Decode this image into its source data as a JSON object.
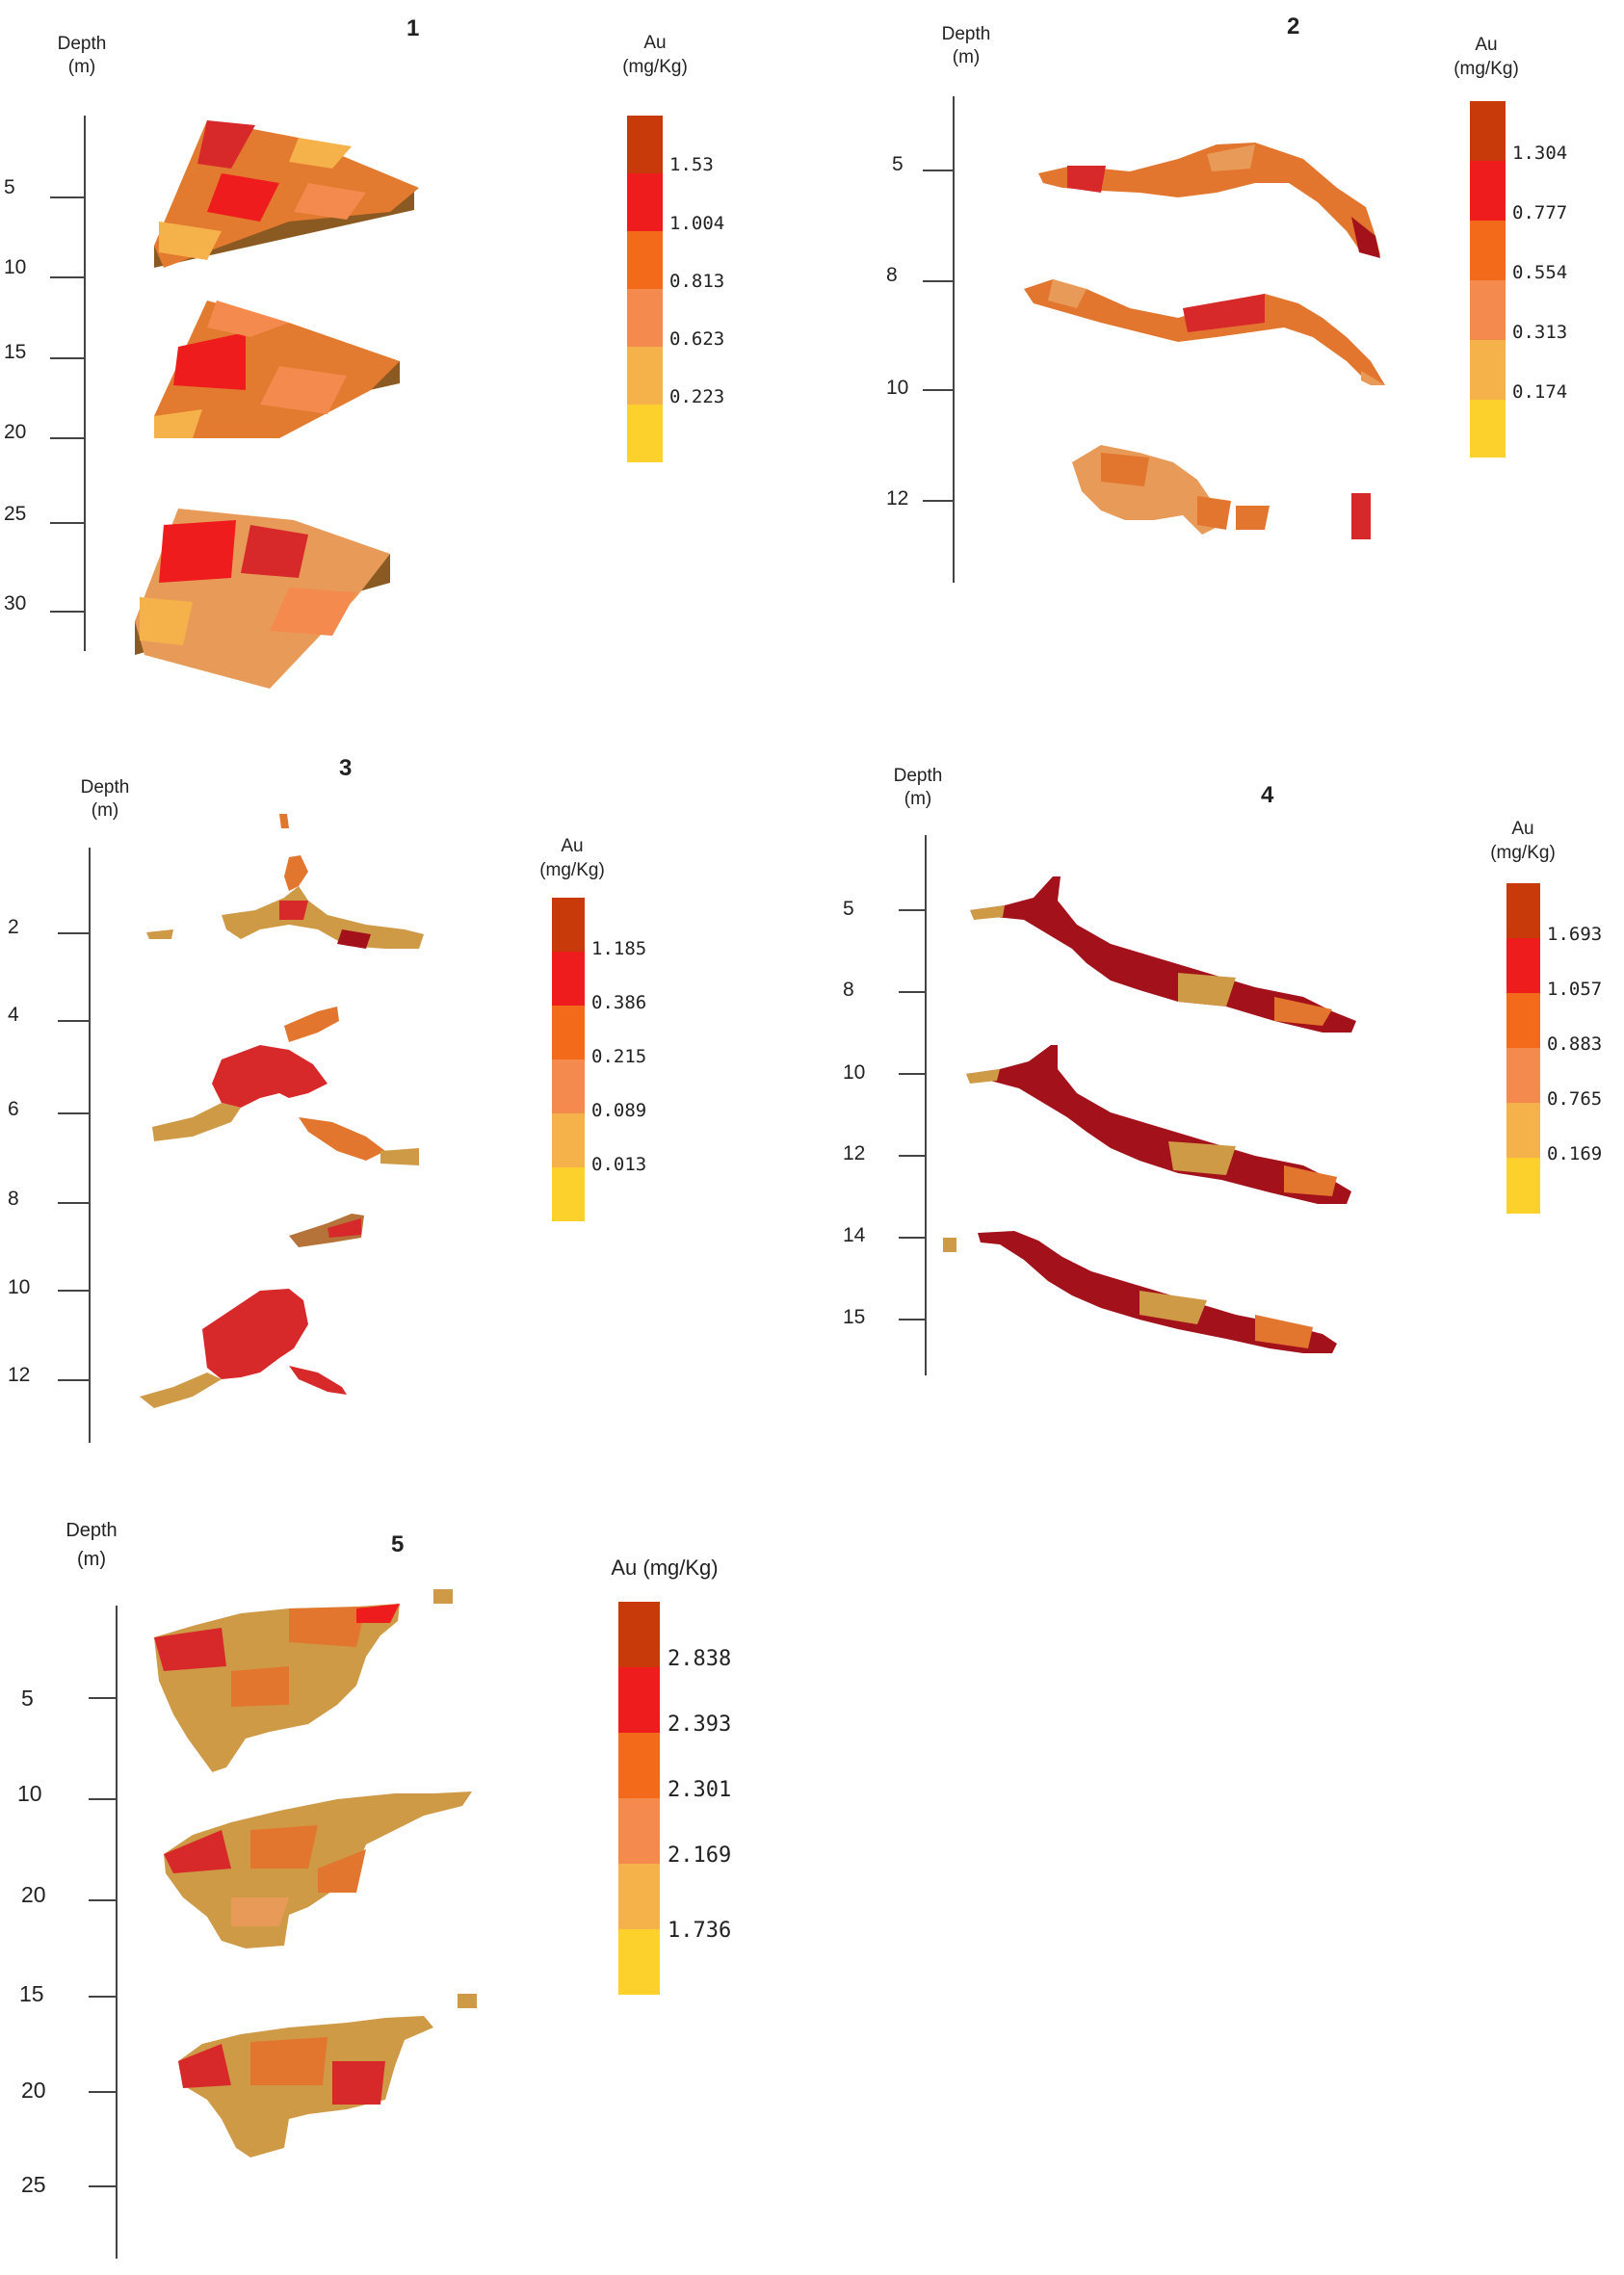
{
  "palette": {
    "c1": "#c83a0a",
    "c2": "#ee1c1c",
    "c3": "#f36b1a",
    "c4": "#f48a4d",
    "c5": "#f5b14a",
    "c6": "#fcd12b",
    "block_red": "#d7282a",
    "block_dark": "#a3111a",
    "block_orange": "#e2762e",
    "block_light": "#e89b58",
    "block_tan": "#cf9a46",
    "block_brown": "#b5733a"
  },
  "panels": [
    {
      "number": "1",
      "depth_title": [
        "Depth",
        "(m)"
      ],
      "depth_ticks": [
        "5",
        "10",
        "15",
        "20",
        "25",
        "30"
      ],
      "legend_title": [
        "Au",
        "(mg/Kg)"
      ],
      "legend_values": [
        "1.53",
        "1.004",
        "0.813",
        "0.623",
        "0.223"
      ]
    },
    {
      "number": "2",
      "depth_title": [
        "Depth",
        "(m)"
      ],
      "depth_ticks": [
        "5",
        "8",
        "10",
        "12"
      ],
      "legend_title": [
        "Au",
        "(mg/Kg)"
      ],
      "legend_values": [
        "1.304",
        "0.777",
        "0.554",
        "0.313",
        "0.174"
      ]
    },
    {
      "number": "3",
      "depth_title": [
        "Depth",
        "(m)"
      ],
      "depth_ticks": [
        "2",
        "4",
        "6",
        "8",
        "10",
        "12"
      ],
      "legend_title": [
        "Au",
        "(mg/Kg)"
      ],
      "legend_values": [
        "1.185",
        "0.386",
        "0.215",
        "0.089",
        "0.013"
      ]
    },
    {
      "number": "4",
      "depth_title": [
        "Depth",
        "(m)"
      ],
      "depth_ticks": [
        "5",
        "8",
        "10",
        "12",
        "14",
        "15"
      ],
      "legend_title": [
        "Au",
        "(mg/Kg)"
      ],
      "legend_values": [
        "1.693",
        "1.057",
        "0.883",
        "0.765",
        "0.169"
      ]
    },
    {
      "number": "5",
      "depth_title": [
        "Depth",
        "(m)"
      ],
      "depth_ticks": [
        "5",
        "10",
        "20",
        "15",
        "20",
        "25"
      ],
      "legend_title": [
        "Au (mg/Kg)"
      ],
      "legend_values": [
        "2.838",
        "2.393",
        "2.301",
        "2.169",
        "1.736"
      ]
    }
  ]
}
